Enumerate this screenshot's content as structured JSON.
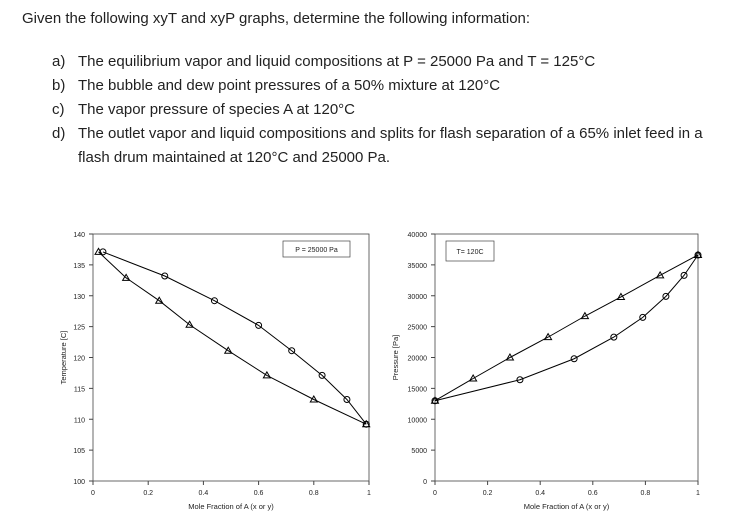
{
  "document": {
    "intro": "Given the following xyT and xyP graphs, determine the following information:",
    "items": [
      {
        "label": "a)",
        "text": "The equilibrium vapor and liquid compositions at P = 25000 Pa and T = 125°C"
      },
      {
        "label": "b)",
        "text": "The bubble and dew point pressures of a 50% mixture at 120°C"
      },
      {
        "label": "c)",
        "text": "The vapor pressure of species A at 120°C"
      },
      {
        "label": "d)",
        "text": "The outlet vapor and liquid compositions and splits for flash separation of a 65% inlet feed in a flash drum maintained at 120°C and 25000 Pa."
      }
    ]
  },
  "chart_data": [
    {
      "type": "line",
      "annotation": "P = 25000 Pa",
      "x_label": "Mole Fraction of A (x or y)",
      "y_label": "Temperature [C]",
      "xlim": [
        0,
        1
      ],
      "xticks": [
        0,
        0.2,
        0.4,
        0.6,
        0.8,
        1
      ],
      "ylim": [
        100,
        140
      ],
      "yticks": [
        100,
        105,
        110,
        115,
        120,
        125,
        130,
        135,
        140
      ],
      "series": [
        {
          "marker": "circle",
          "color": "#000000",
          "x": [
            0.036,
            0.26,
            0.44,
            0.6,
            0.72,
            0.83,
            0.92,
            0.99
          ],
          "values": [
            137.1,
            133.2,
            129.2,
            125.2,
            121.1,
            117.1,
            113.2,
            109.2
          ]
        },
        {
          "marker": "triangle",
          "color": "#000000",
          "x": [
            0.02,
            0.12,
            0.24,
            0.35,
            0.49,
            0.63,
            0.8,
            0.99
          ],
          "values": [
            137.1,
            132.9,
            129.2,
            125.3,
            121.1,
            117.1,
            113.2,
            109.2
          ]
        }
      ]
    },
    {
      "type": "line",
      "annotation": "T= 120C",
      "x_label": "Mole Fraction of A (x or y)",
      "y_label": "Pressure [Pa]",
      "xlim": [
        0,
        1
      ],
      "xticks": [
        0,
        0.2,
        0.4,
        0.6,
        0.8,
        1
      ],
      "ylim": [
        0,
        40000
      ],
      "yticks": [
        0,
        5000,
        10000,
        15000,
        20000,
        25000,
        30000,
        35000,
        40000
      ],
      "series": [
        {
          "marker": "triangle",
          "color": "#000000",
          "x": [
            0,
            0.145,
            0.285,
            0.43,
            0.57,
            0.707,
            0.856,
            1
          ],
          "values": [
            13000,
            16600,
            20000,
            23300,
            26700,
            29800,
            33300,
            36600
          ]
        },
        {
          "marker": "circle",
          "color": "#000000",
          "x": [
            0,
            0.323,
            0.529,
            0.68,
            0.79,
            0.878,
            0.947,
            1
          ],
          "values": [
            13000,
            16400,
            19800,
            23300,
            26500,
            29900,
            33300,
            36600
          ]
        }
      ]
    }
  ]
}
